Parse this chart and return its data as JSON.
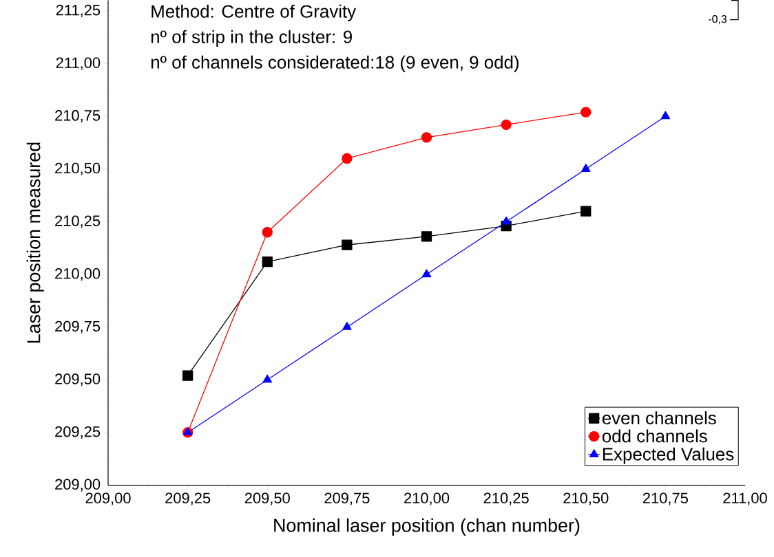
{
  "chart_data": {
    "type": "line",
    "xlabel": "Nominal laser position (chan number)",
    "ylabel": "Laser position measured",
    "annotations": [
      "Method: Centre of Gravity",
      "nº of strip in the cluster: 9",
      "nº of channels considerated:18 (9 even, 9 odd)",
      "-0,3"
    ],
    "x": [
      209.25,
      209.5,
      209.75,
      210.0,
      210.25,
      210.5,
      210.75
    ],
    "series": [
      {
        "name": "even channels",
        "color": "#000000",
        "marker": "square",
        "values": [
          209.52,
          210.06,
          210.14,
          210.18,
          210.23,
          210.3,
          null
        ]
      },
      {
        "name": "odd channels",
        "color": "#ff0000",
        "marker": "circle",
        "values": [
          209.25,
          210.2,
          210.55,
          210.65,
          210.71,
          210.77,
          null
        ]
      },
      {
        "name": "Expected Values",
        "color": "#0000ff",
        "marker": "triangle",
        "values": [
          209.25,
          209.5,
          209.75,
          210.0,
          210.25,
          210.5,
          210.75
        ]
      }
    ],
    "xlim": [
      209.0,
      211.0
    ],
    "ylim": [
      209.0,
      211.3
    ],
    "xticks": [
      {
        "value": 209.0,
        "label": "209,00"
      },
      {
        "value": 209.25,
        "label": "209,25"
      },
      {
        "value": 209.5,
        "label": "209,50"
      },
      {
        "value": 209.75,
        "label": "209,75"
      },
      {
        "value": 210.0,
        "label": "210,00"
      },
      {
        "value": 210.25,
        "label": "210,25"
      },
      {
        "value": 210.5,
        "label": "210,50"
      },
      {
        "value": 210.75,
        "label": "210,75"
      },
      {
        "value": 211.0,
        "label": "211,00"
      }
    ],
    "yticks": [
      {
        "value": 209.0,
        "label": "209,00"
      },
      {
        "value": 209.25,
        "label": "209,25"
      },
      {
        "value": 209.5,
        "label": "209,50"
      },
      {
        "value": 209.75,
        "label": "209,75"
      },
      {
        "value": 210.0,
        "label": "210,00"
      },
      {
        "value": 210.25,
        "label": "210,25"
      },
      {
        "value": 210.5,
        "label": "210,50"
      },
      {
        "value": 210.75,
        "label": "210,75"
      },
      {
        "value": 211.0,
        "label": "211,00"
      },
      {
        "value": 211.25,
        "label": "211,25"
      }
    ],
    "grid": false,
    "legend": "bottom right",
    "line_style": "solid"
  }
}
